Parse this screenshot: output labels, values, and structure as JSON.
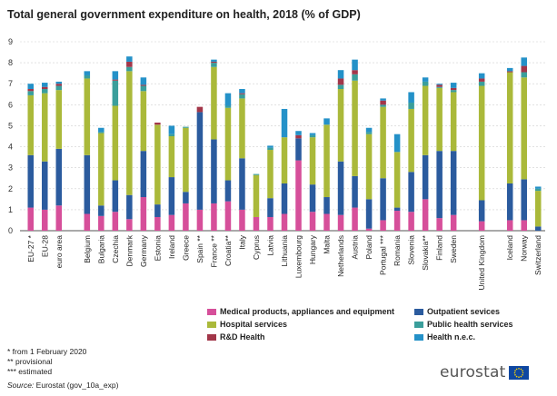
{
  "title": "Total general government expenditure on health, 2018 (% of GDP)",
  "notes": [
    "* from 1 February 2020",
    "** provisional",
    "*** estimated"
  ],
  "source_label": "Source:",
  "source_text": "Eurostat (gov_10a_exp)",
  "logo_text": "eurostat",
  "colors": {
    "medical": "#d64f9a",
    "outpatient": "#2b5b9e",
    "hospital": "#aab93a",
    "public_health": "#3a9e9b",
    "rnd": "#a23649",
    "nec": "#2491c8",
    "grid": "#cfcfcf",
    "axis": "#555555"
  },
  "legend": [
    {
      "key": "medical",
      "label": "Medical products, appliances and equipment"
    },
    {
      "key": "outpatient",
      "label": "Outpatient sevices"
    },
    {
      "key": "hospital",
      "label": "Hospital services"
    },
    {
      "key": "public_health",
      "label": "Public health services"
    },
    {
      "key": "rnd",
      "label": "R&D Health"
    },
    {
      "key": "nec",
      "label": "Health n.e.c."
    }
  ],
  "chart_data": {
    "type": "bar",
    "stacked": true,
    "title": "Total general government expenditure on health, 2018 (% of GDP)",
    "ylim": [
      0,
      9
    ],
    "yticks": [
      0,
      1,
      2,
      3,
      4,
      5,
      6,
      7,
      8,
      9
    ],
    "grid": true,
    "legend_position": "bottom",
    "categories": [
      "EU-27 *",
      "EU-28",
      "euro area",
      "Belgium",
      "Bulgaria",
      "Czechia",
      "Denmark",
      "Germany",
      "Estonia",
      "Ireland",
      "Greece",
      "Spain **",
      "France **",
      "Croatia**",
      "Italy",
      "Cyprus",
      "Latvia",
      "Lithuania",
      "Luxembourg",
      "Hungary",
      "Malta",
      "Netherlands",
      "Austria",
      "Poland",
      "Portugal ***",
      "Romania",
      "Slovenia",
      "Slovakia**",
      "Finland",
      "Sweden",
      "United Kingdom",
      "Iceland",
      "Norway",
      "Switzerland"
    ],
    "gap_after": [
      "euro area",
      "Sweden",
      "United Kingdom"
    ],
    "series": [
      {
        "name": "Medical products, appliances and equipment",
        "key": "medical",
        "values": [
          1.1,
          1.0,
          1.2,
          0.8,
          0.7,
          0.9,
          0.55,
          1.6,
          0.65,
          0.75,
          1.3,
          1.0,
          1.3,
          1.4,
          1.0,
          0.65,
          0.65,
          0.8,
          3.35,
          0.9,
          0.8,
          0.75,
          1.1,
          0.1,
          0.5,
          0.95,
          0.9,
          1.5,
          0.6,
          0.75,
          0.45,
          0.5,
          0.5,
          0.0
        ]
      },
      {
        "name": "Outpatient sevices",
        "key": "outpatient",
        "values": [
          2.5,
          2.3,
          2.7,
          2.8,
          0.5,
          1.5,
          1.15,
          2.2,
          0.6,
          1.8,
          0.55,
          4.65,
          3.05,
          1.0,
          2.45,
          0.0,
          0.9,
          1.45,
          1.05,
          1.3,
          0.8,
          2.55,
          1.5,
          1.4,
          2.0,
          0.15,
          1.9,
          2.1,
          3.2,
          3.05,
          1.0,
          1.75,
          1.95,
          0.2
        ]
      },
      {
        "name": "Hospital services",
        "key": "hospital",
        "values": [
          2.85,
          3.25,
          2.8,
          3.65,
          3.45,
          3.55,
          5.9,
          2.85,
          3.8,
          1.95,
          3.05,
          0.0,
          3.45,
          3.45,
          2.85,
          2.0,
          2.3,
          2.2,
          0.0,
          2.25,
          3.45,
          3.45,
          4.55,
          3.1,
          3.4,
          2.65,
          3.0,
          3.3,
          3.0,
          2.8,
          5.45,
          5.3,
          4.85,
          1.7
        ]
      },
      {
        "name": "Public health services",
        "key": "public_health",
        "values": [
          0.2,
          0.2,
          0.2,
          0.15,
          0.05,
          1.2,
          0.2,
          0.25,
          0.0,
          0.1,
          0.05,
          0.0,
          0.2,
          0.1,
          0.2,
          0.05,
          0.1,
          0.0,
          0.0,
          0.1,
          0.0,
          0.2,
          0.3,
          0.1,
          0.1,
          0.0,
          0.3,
          0.2,
          0.05,
          0.1,
          0.2,
          0.0,
          0.25,
          0.1
        ]
      },
      {
        "name": "R&D Health",
        "key": "rnd",
        "values": [
          0.1,
          0.1,
          0.1,
          0.0,
          0.0,
          0.05,
          0.25,
          0.05,
          0.1,
          0.0,
          0.0,
          0.25,
          0.05,
          0.0,
          0.05,
          0.0,
          0.0,
          0.0,
          0.15,
          0.0,
          0.0,
          0.3,
          0.2,
          0.0,
          0.2,
          0.0,
          0.0,
          0.0,
          0.1,
          0.1,
          0.15,
          0.05,
          0.3,
          0.0
        ]
      },
      {
        "name": "Health n.e.c.",
        "key": "nec",
        "values": [
          0.25,
          0.2,
          0.1,
          0.2,
          0.2,
          0.4,
          0.25,
          0.35,
          0.0,
          0.4,
          0.0,
          0.0,
          0.1,
          0.6,
          0.2,
          0.0,
          0.1,
          1.35,
          0.2,
          0.1,
          0.3,
          0.4,
          0.5,
          0.2,
          0.1,
          0.85,
          0.5,
          0.2,
          0.05,
          0.25,
          0.25,
          0.15,
          0.4,
          0.1
        ]
      }
    ]
  }
}
